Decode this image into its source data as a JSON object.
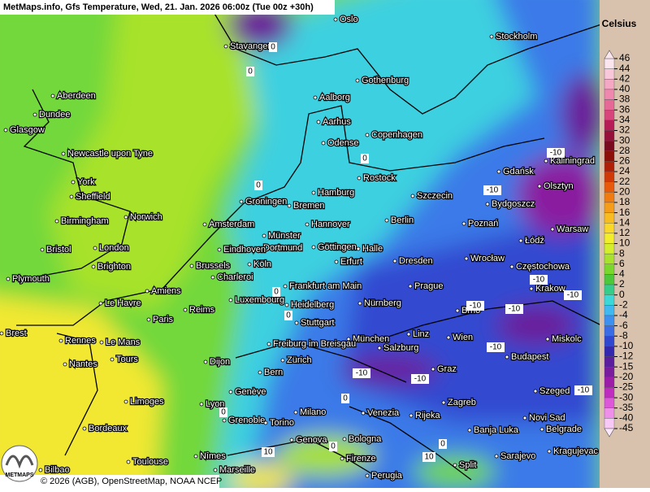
{
  "header": {
    "title": "MetMaps.info, Gfs Temperature, Wed, 21. Jan. 2026 06:00z (Tue 00z +30h)"
  },
  "legend": {
    "title": "Celsius",
    "values": [
      46,
      44,
      42,
      40,
      38,
      36,
      34,
      32,
      30,
      28,
      26,
      24,
      22,
      20,
      18,
      16,
      14,
      12,
      10,
      8,
      6,
      4,
      2,
      0,
      -2,
      -4,
      -6,
      -8,
      -10,
      -12,
      -15,
      -20,
      -25,
      -30,
      -35,
      -40,
      -45
    ],
    "colors": [
      "#fbe6ef",
      "#f8c8da",
      "#f4a8c4",
      "#ee88ae",
      "#e66896",
      "#d8447c",
      "#b81c56",
      "#96103a",
      "#7a0a1e",
      "#8c1008",
      "#b02008",
      "#d03a08",
      "#e85a0a",
      "#f07c10",
      "#f59c18",
      "#f8bc20",
      "#fad828",
      "#f2ee2c",
      "#d4ee2c",
      "#a8e22c",
      "#7ad82c",
      "#4cc83a",
      "#36cc8a",
      "#3cd8d8",
      "#40b8f0",
      "#3c90f0",
      "#3a6ce6",
      "#3048d0",
      "#3428b0",
      "#5a1e9e",
      "#7a1c9e",
      "#9c1ea8",
      "#c02cc0",
      "#dc58d8",
      "#ee90ea",
      "#f8c8f6",
      "#fce8fc"
    ]
  },
  "cities": [
    "Oslo",
    "Stockholm",
    "Stavanger",
    "Gothenburg",
    "Aberdeen",
    "Aalborg",
    "Dundee",
    "Aarhus",
    "Glasgow",
    "Copenhagen",
    "Odense",
    "Newcastle upon Tyne",
    "Kaliningrad",
    "Gdańsk",
    "Rostock",
    "York",
    "Olsztyn",
    "Hamburg",
    "Sheffield",
    "Szczecin",
    "Groningen",
    "Bremen",
    "Bydgoszcz",
    "Hannover",
    "Berlin",
    "Amsterdam",
    "Birmingham",
    "Norwich",
    "Poznań",
    "Warsaw",
    "Münster",
    "Dortmund",
    "Göttingen",
    "Halle",
    "Łódź",
    "Bristol",
    "London",
    "Eindhoven",
    "Wrocław",
    "Brighton",
    "Brussels",
    "Köln",
    "Erfurt",
    "Dresden",
    "Częstochowa",
    "Plymouth",
    "Charleroi",
    "Frankfurt am Main",
    "Prague",
    "Krakow",
    "Amiens",
    "Luxembourg",
    "Le Havre",
    "Heidelberg",
    "Nürnberg",
    "Brno",
    "Reims",
    "Paris",
    "Stuttgart",
    "Brest",
    "Linz",
    "Rennes",
    "Le Mans",
    "München",
    "Wien",
    "Miskolc",
    "Freiburg im Breisgau",
    "Salzburg",
    "Tours",
    "Zürich",
    "Budapest",
    "Dijon",
    "Nantes",
    "Bern",
    "Graz",
    "Szeged",
    "Genève",
    "Limoges",
    "Lyon",
    "Zagreb",
    "Milano",
    "Venezia",
    "Rijeka",
    "Bordeaux",
    "Novi Sad",
    "Grenoble",
    "Torino",
    "Banja Luka",
    "Belgrade",
    "Genova",
    "Bologna",
    "Sarajevo",
    "Kragujevac",
    "Toulouse",
    "Nîmes",
    "Firenze",
    "Split",
    "Bilbao",
    "Marseille",
    "Perugia"
  ],
  "contour_labels": [
    0,
    0,
    0,
    0,
    -10,
    -10,
    -10,
    -10,
    -10,
    -10,
    -10,
    -10,
    -10,
    -10,
    0,
    0,
    0,
    0,
    10,
    0,
    0,
    10
  ],
  "footer": {
    "credit": "© 2026 (AGB), OpenStreetMap, NOAA NCEP",
    "logo": "METMAPS"
  }
}
